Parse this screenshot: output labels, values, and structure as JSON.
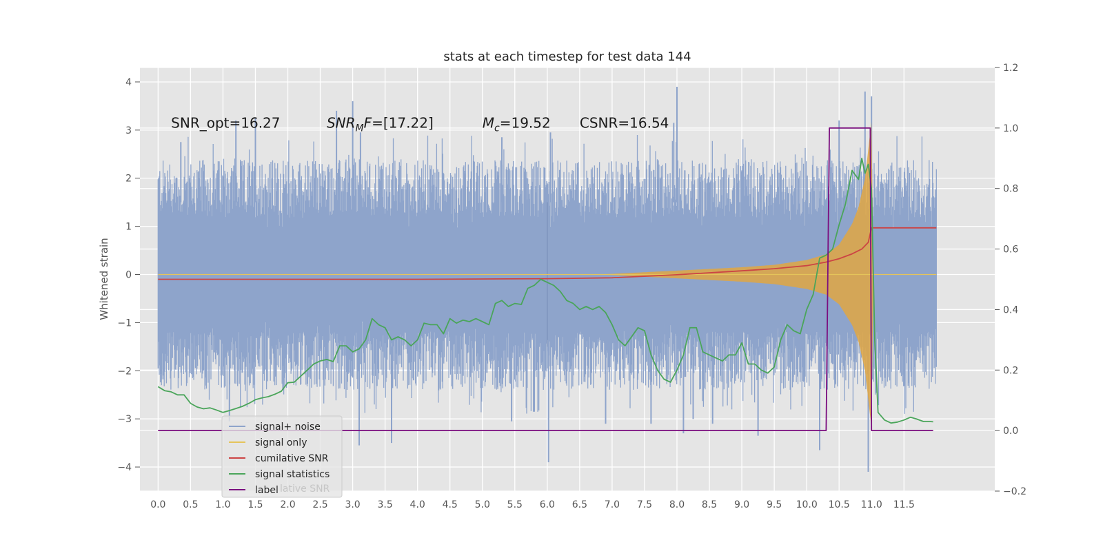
{
  "chart_data": {
    "type": "line",
    "title": "stats at each timestep for test data 144",
    "ylabel": "Whitened strain",
    "xlabel": "",
    "xlim": [
      -0.28,
      12.9
    ],
    "ylim": [
      -4.5,
      4.3
    ],
    "y2lim": [
      -0.2,
      1.2
    ],
    "grid": true,
    "legend_placement": "lower-left",
    "x_ticks": [
      "0.0",
      "0.5",
      "1.0",
      "1.5",
      "2.0",
      "2.5",
      "3.0",
      "3.5",
      "4.0",
      "4.5",
      "5.0",
      "5.5",
      "6.0",
      "6.5",
      "7.0",
      "7.5",
      "8.0",
      "8.5",
      "9.0",
      "9.5",
      "10.0",
      "10.5",
      "11.0",
      "11.5"
    ],
    "y_ticks": [
      "4",
      "3",
      "2",
      "1",
      "0",
      "−1",
      "−2",
      "−3",
      "−4"
    ],
    "y2_ticks": [
      "1.2",
      "1.0",
      "0.8",
      "0.6",
      "0.4",
      "0.2",
      "0.0",
      "−0.2"
    ],
    "annotations": [
      {
        "parts": [
          {
            "t": "SNR_opt=16.27",
            "style": "normal"
          }
        ],
        "x": 0.2,
        "y": 3.05
      },
      {
        "parts": [
          {
            "t": "SNR",
            "style": "italic"
          },
          {
            "t": "M",
            "style": "italic-sub"
          },
          {
            "t": "F",
            "style": "italic"
          },
          {
            "t": "=[17.22]",
            "style": "normal"
          }
        ],
        "x": 2.6,
        "y": 3.05
      },
      {
        "parts": [
          {
            "t": "M",
            "style": "italic"
          },
          {
            "t": "c",
            "style": "italic-sub"
          },
          {
            "t": "=19.52",
            "style": "normal"
          }
        ],
        "x": 5.0,
        "y": 3.05
      },
      {
        "parts": [
          {
            "t": "CSNR=16.54",
            "style": "normal"
          }
        ],
        "x": 6.5,
        "y": 3.05
      }
    ],
    "legend": {
      "entries": [
        "signal+ noise",
        "signal only",
        "cumilative SNR",
        "signal statistics",
        "label"
      ],
      "ghost_text": "lative SNR"
    },
    "colors": {
      "background": "#e5e5e5",
      "grid": "#ffffff",
      "noise": "#8ea4cb",
      "signal": "#e0a743",
      "signal_legend": "#e5c45a",
      "snr": "#cc4444",
      "stats": "#4aa55a",
      "label": "#7b0e7f"
    },
    "series": [
      {
        "name": "signal+ noise",
        "axis": "left",
        "envelope": {
          "min_mean": -1.55,
          "max_mean": 1.55,
          "spread": 0.55,
          "span": [
            0.0,
            12.0
          ]
        },
        "spikes_up": [
          [
            0.35,
            2.75
          ],
          [
            1.2,
            3.2
          ],
          [
            1.5,
            3.25
          ],
          [
            2.75,
            3.4
          ],
          [
            3.0,
            3.6
          ],
          [
            3.12,
            2.95
          ],
          [
            5.3,
            2.85
          ],
          [
            6.05,
            2.95
          ],
          [
            7.95,
            3.15
          ],
          [
            8.0,
            3.9
          ],
          [
            10.5,
            3.2
          ],
          [
            10.9,
            3.8
          ],
          [
            11.0,
            3.7
          ]
        ],
        "spikes_down": [
          [
            1.1,
            -3.05
          ],
          [
            3.1,
            -3.55
          ],
          [
            3.6,
            -3.5
          ],
          [
            5.45,
            -3.05
          ],
          [
            5.8,
            -2.85
          ],
          [
            6.02,
            -3.9
          ],
          [
            6.9,
            -3.1
          ],
          [
            7.6,
            -3.1
          ],
          [
            8.1,
            -3.3
          ],
          [
            8.25,
            -3.0
          ],
          [
            8.55,
            -3.1
          ],
          [
            9.25,
            -3.35
          ],
          [
            10.2,
            -3.65
          ],
          [
            10.95,
            -4.1
          ]
        ],
        "markers": [
          6.0
        ]
      },
      {
        "name": "signal only",
        "axis": "left",
        "chirp": {
          "x": [
            6.8,
            8.0,
            9.0,
            9.5,
            10.0,
            10.3,
            10.5,
            10.7,
            10.8,
            10.9,
            10.95,
            11.0,
            11.03
          ],
          "amp": [
            0.0,
            0.08,
            0.15,
            0.2,
            0.3,
            0.42,
            0.62,
            1.05,
            1.4,
            2.0,
            2.6,
            3.2,
            0.0
          ]
        }
      },
      {
        "name": "cumilative SNR",
        "axis": "right",
        "x": [
          0.0,
          4.0,
          6.0,
          7.0,
          8.0,
          9.0,
          9.5,
          10.0,
          10.3,
          10.5,
          10.7,
          10.85,
          10.95,
          11.0,
          12.0
        ],
        "y": [
          0.5,
          0.5,
          0.502,
          0.505,
          0.515,
          0.528,
          0.535,
          0.545,
          0.557,
          0.568,
          0.584,
          0.6,
          0.622,
          0.67,
          0.67
        ]
      },
      {
        "name": "signal statistics",
        "axis": "right",
        "x": [
          0.0,
          0.1,
          0.2,
          0.3,
          0.4,
          0.5,
          0.6,
          0.7,
          0.8,
          0.9,
          1.0,
          1.1,
          1.2,
          1.3,
          1.4,
          1.5,
          1.6,
          1.7,
          1.8,
          1.9,
          2.0,
          2.1,
          2.2,
          2.3,
          2.4,
          2.5,
          2.6,
          2.7,
          2.8,
          2.9,
          3.0,
          3.1,
          3.2,
          3.3,
          3.4,
          3.5,
          3.6,
          3.7,
          3.8,
          3.9,
          4.0,
          4.1,
          4.2,
          4.3,
          4.4,
          4.5,
          4.6,
          4.7,
          4.8,
          4.9,
          5.0,
          5.1,
          5.2,
          5.3,
          5.4,
          5.5,
          5.6,
          5.7,
          5.8,
          5.9,
          6.0,
          6.1,
          6.2,
          6.3,
          6.4,
          6.5,
          6.6,
          6.7,
          6.8,
          6.9,
          7.0,
          7.1,
          7.2,
          7.3,
          7.4,
          7.5,
          7.6,
          7.7,
          7.8,
          7.9,
          8.0,
          8.1,
          8.2,
          8.3,
          8.4,
          8.5,
          8.6,
          8.7,
          8.8,
          8.9,
          9.0,
          9.1,
          9.2,
          9.3,
          9.4,
          9.5,
          9.6,
          9.7,
          9.8,
          9.9,
          10.0,
          10.1,
          10.2,
          10.3,
          10.4,
          10.5,
          10.6,
          10.7,
          10.8,
          10.85,
          10.9,
          10.95,
          11.0,
          11.05,
          11.1,
          11.2,
          11.3,
          11.4,
          11.5,
          11.6,
          11.7,
          11.8,
          11.9,
          11.95
        ],
        "y": [
          0.145,
          0.132,
          0.128,
          0.118,
          0.118,
          0.09,
          0.078,
          0.072,
          0.075,
          0.068,
          0.06,
          0.066,
          0.073,
          0.08,
          0.09,
          0.102,
          0.108,
          0.112,
          0.12,
          0.13,
          0.158,
          0.16,
          0.18,
          0.2,
          0.22,
          0.23,
          0.235,
          0.228,
          0.28,
          0.28,
          0.26,
          0.27,
          0.3,
          0.37,
          0.35,
          0.34,
          0.3,
          0.31,
          0.3,
          0.28,
          0.3,
          0.355,
          0.35,
          0.35,
          0.32,
          0.37,
          0.355,
          0.365,
          0.36,
          0.37,
          0.36,
          0.35,
          0.42,
          0.43,
          0.41,
          0.42,
          0.417,
          0.47,
          0.48,
          0.5,
          0.49,
          0.48,
          0.46,
          0.43,
          0.42,
          0.4,
          0.41,
          0.4,
          0.41,
          0.39,
          0.35,
          0.3,
          0.28,
          0.31,
          0.34,
          0.33,
          0.25,
          0.2,
          0.17,
          0.16,
          0.2,
          0.25,
          0.34,
          0.34,
          0.26,
          0.25,
          0.24,
          0.23,
          0.25,
          0.25,
          0.29,
          0.22,
          0.22,
          0.2,
          0.19,
          0.21,
          0.3,
          0.35,
          0.33,
          0.32,
          0.4,
          0.45,
          0.57,
          0.58,
          0.6,
          0.68,
          0.75,
          0.86,
          0.83,
          0.9,
          0.85,
          0.88,
          0.8,
          0.3,
          0.06,
          0.035,
          0.025,
          0.028,
          0.035,
          0.044,
          0.038,
          0.03,
          0.03,
          0.029
        ]
      },
      {
        "name": "label",
        "axis": "right",
        "x": [
          0.0,
          10.3,
          10.35,
          10.93,
          10.98,
          11.0,
          11.95
        ],
        "y": [
          0.0,
          0.0,
          1.0,
          1.0,
          1.0,
          0.0,
          0.0
        ]
      }
    ]
  }
}
